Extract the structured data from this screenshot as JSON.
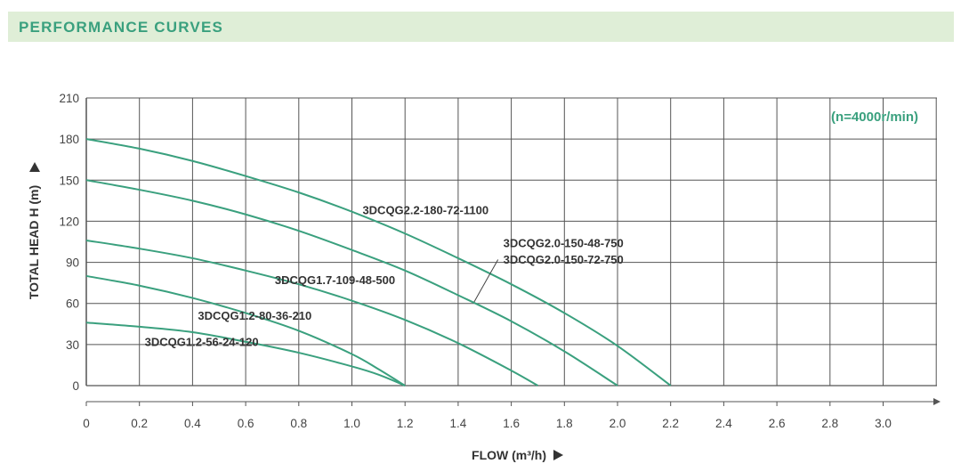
{
  "header": {
    "title": "PERFORMANCE CURVES"
  },
  "colors": {
    "header_bg": "#dfeed7",
    "accent": "#3aa07e",
    "curve": "#3aa07e",
    "grid": "#555555"
  },
  "chart_data": {
    "type": "line",
    "xlabel": "FLOW (m³/h)",
    "ylabel": "TOTAL HEAD H (m)",
    "annotation": "(n=4000r/min)",
    "xlim": [
      0,
      3.2
    ],
    "ylim": [
      0,
      210
    ],
    "xticks": [
      "0",
      "0.2",
      "0.4",
      "0.6",
      "0.8",
      "1.0",
      "1.2",
      "1.4",
      "1.6",
      "1.8",
      "2.0",
      "2.2",
      "2.4",
      "2.6",
      "2.8",
      "3.0"
    ],
    "yticks": [
      "0",
      "30",
      "60",
      "90",
      "120",
      "150",
      "180",
      "210"
    ],
    "grid": true,
    "series": [
      {
        "name": "3DCQG1.2-56-24-120",
        "x": [
          0,
          0.2,
          0.4,
          0.6,
          0.8,
          1.0,
          1.1,
          1.2
        ],
        "y": [
          46,
          43,
          39,
          32,
          24,
          14,
          8,
          0
        ]
      },
      {
        "name": "3DCQG1.2-80-36-210",
        "x": [
          0,
          0.2,
          0.4,
          0.6,
          0.8,
          1.0,
          1.1,
          1.2
        ],
        "y": [
          80,
          73,
          64,
          53,
          40,
          23,
          12,
          0
        ]
      },
      {
        "name": "3DCQG1.7-109-48-500",
        "x": [
          0,
          0.2,
          0.4,
          0.6,
          0.8,
          1.0,
          1.2,
          1.4,
          1.6,
          1.7
        ],
        "y": [
          106,
          100,
          93,
          84,
          74,
          62,
          48,
          31,
          11,
          0
        ]
      },
      {
        "name": "3DCQG2.0-150-48-750",
        "x": [
          0,
          0.2,
          0.4,
          0.6,
          0.8,
          1.0,
          1.2,
          1.4,
          1.6,
          1.8,
          2.0
        ],
        "y": [
          150,
          143,
          135,
          125,
          113,
          99,
          84,
          66,
          47,
          25,
          0
        ]
      },
      {
        "name": "3DCQG2.2-180-72-1100",
        "x": [
          0,
          0.2,
          0.4,
          0.6,
          0.8,
          1.0,
          1.2,
          1.4,
          1.6,
          1.8,
          2.0,
          2.2
        ],
        "y": [
          180,
          173,
          164,
          153,
          141,
          127,
          111,
          93,
          74,
          53,
          29,
          0
        ]
      }
    ],
    "labels": [
      {
        "text": "3DCQG2.2-180-72-1100",
        "x": 1.04,
        "y": 125
      },
      {
        "text": "3DCQG2.0-150-48-750",
        "x": 1.57,
        "y": 101
      },
      {
        "text": "3DCQG2.0-150-72-750",
        "x": 1.57,
        "y": 89
      },
      {
        "text": "3DCQG1.7-109-48-500",
        "x": 0.71,
        "y": 74
      },
      {
        "text": "3DCQG1.2-80-36-210",
        "x": 0.42,
        "y": 48
      },
      {
        "text": "3DCQG1.2-56-24-120",
        "x": 0.22,
        "y": 29
      }
    ],
    "leader": {
      "from": [
        1.55,
        92
      ],
      "to": [
        1.46,
        61
      ]
    }
  }
}
